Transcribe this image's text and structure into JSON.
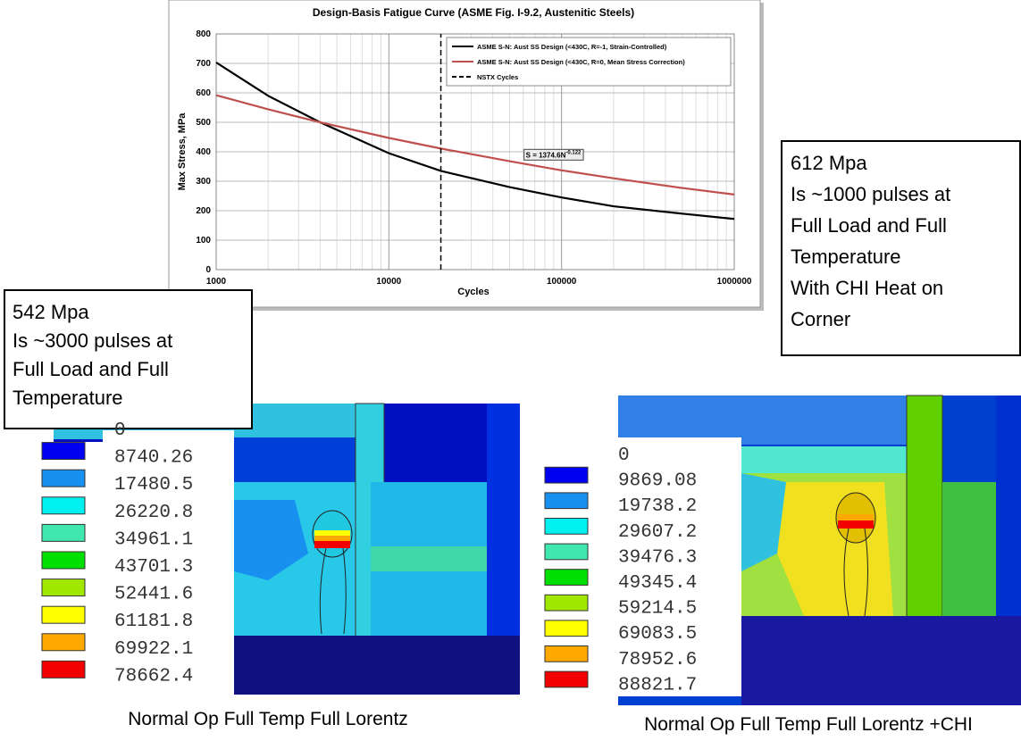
{
  "chart_data": {
    "type": "line",
    "title": "Design-Basis Fatigue Curve (ASME Fig. I-9.2, Austenitic Steels)",
    "x_label": "Cycles",
    "y_label": "Max Stress, MPa",
    "x": [
      1000,
      2000,
      4000,
      10000,
      20000,
      50000,
      100000,
      200000,
      500000,
      1000000
    ],
    "series": [
      {
        "name": "ASME S-N: Aust SS Design (<430C, R=-1, Strain-Controlled)",
        "color": "#000000",
        "values": [
          703,
          590,
          500,
          395,
          335,
          280,
          245,
          215,
          190,
          172
        ]
      },
      {
        "name": "ASME S-N: Aust SS Design (<430C, R=0, Mean Stress Correction)",
        "color": "#c0504d",
        "values": [
          592,
          544,
          500,
          447,
          411,
          368,
          337,
          310,
          277,
          255
        ]
      },
      {
        "name": "NSTX Cycles",
        "color": "#000000",
        "dash": true,
        "x": [
          20000,
          20000
        ],
        "values": [
          0,
          800
        ]
      }
    ],
    "annotation": {
      "text": "S = 1374.6N",
      "superscript": "-0.122",
      "x": 100000,
      "y": 390
    },
    "log_x": true,
    "xlim": [
      1000,
      1000000
    ],
    "xticks": [
      1000,
      10000,
      100000,
      1000000
    ],
    "ylim": [
      0,
      800
    ],
    "yticks": [
      0,
      100,
      200,
      300,
      400,
      500,
      600,
      700,
      800
    ],
    "grid": true,
    "legend": "top-right"
  },
  "right_note": {
    "lines": [
      "612 Mpa",
      "Is ~1000 pulses at",
      "Full Load and Full",
      "Temperature",
      "With CHI Heat on",
      "Corner"
    ]
  },
  "left_note": {
    "lines": [
      "542 Mpa",
      "Is ~3000 pulses at",
      "Full Load and Full",
      "Temperature"
    ]
  },
  "left_contour": {
    "levels": [
      0,
      8740.26,
      17480.5,
      26220.8,
      34961.1,
      43701.3,
      52441.6,
      61181.8,
      69922.1,
      78662.4
    ],
    "caption": "Normal Op Full Temp Full Lorentz"
  },
  "right_contour": {
    "levels": [
      0,
      9869.08,
      19738.2,
      29607.2,
      39476.3,
      49345.4,
      59214.5,
      69083.5,
      78952.6,
      88821.7
    ],
    "caption": "Normal Op Full Temp Full Lorentz +CHI"
  },
  "contour_colors": [
    "#0000f0",
    "#1890f0",
    "#00f0f0",
    "#40e8b0",
    "#00e000",
    "#a0e800",
    "#ffff00",
    "#ffa800",
    "#f00000"
  ]
}
